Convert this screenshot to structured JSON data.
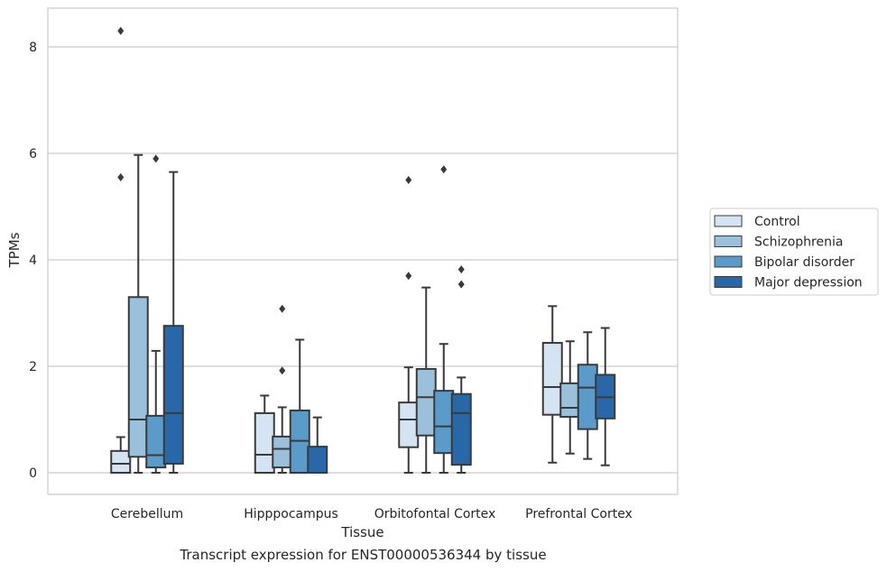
{
  "caption": "Transcript expression for ENST00000536344 by tissue",
  "chart_data": {
    "type": "box",
    "xlabel": "Tissue",
    "ylabel": "TPMs",
    "ylim": [
      -0.4,
      8.7
    ],
    "yticks": [
      0,
      2,
      4,
      6,
      8
    ],
    "grid": "horizontal",
    "legend_position": "center-right, outside plot",
    "categories": [
      "Cerebellum",
      "Hipppocampus",
      "Orbitofontal Cortex",
      "Prefrontal Cortex"
    ],
    "series": [
      {
        "name": "Control",
        "color": "#d4e4f2",
        "boxes": [
          {
            "whislo": 0.0,
            "q1": 0.0,
            "med": 0.17,
            "q3": 0.41,
            "whishi": 0.67,
            "fliers": [
              5.55,
              8.3
            ]
          },
          {
            "whislo": 0.0,
            "q1": 0.0,
            "med": 0.34,
            "q3": 1.12,
            "whishi": 1.45,
            "fliers": []
          },
          {
            "whislo": 0.0,
            "q1": 0.48,
            "med": 1.0,
            "q3": 1.32,
            "whishi": 1.98,
            "fliers": [
              3.7,
              5.5
            ]
          },
          {
            "whislo": 0.19,
            "q1": 1.09,
            "med": 1.61,
            "q3": 2.44,
            "whishi": 3.13,
            "fliers": []
          }
        ]
      },
      {
        "name": "Schizophrenia",
        "color": "#9ac0dc",
        "boxes": [
          {
            "whislo": 0.0,
            "q1": 0.3,
            "med": 1.0,
            "q3": 3.3,
            "whishi": 5.97,
            "fliers": []
          },
          {
            "whislo": 0.0,
            "q1": 0.1,
            "med": 0.45,
            "q3": 0.68,
            "whishi": 1.23,
            "fliers": [
              1.92,
              3.08
            ]
          },
          {
            "whislo": 0.0,
            "q1": 0.7,
            "med": 1.42,
            "q3": 1.95,
            "whishi": 3.48,
            "fliers": []
          },
          {
            "whislo": 0.36,
            "q1": 1.05,
            "med": 1.22,
            "q3": 1.68,
            "whishi": 2.47,
            "fliers": []
          }
        ]
      },
      {
        "name": "Bipolar disorder",
        "color": "#5b9bc9",
        "boxes": [
          {
            "whislo": 0.0,
            "q1": 0.1,
            "med": 0.33,
            "q3": 1.07,
            "whishi": 2.29,
            "fliers": [
              5.9
            ]
          },
          {
            "whislo": 0.0,
            "q1": 0.0,
            "med": 0.6,
            "q3": 1.17,
            "whishi": 2.5,
            "fliers": []
          },
          {
            "whislo": 0.0,
            "q1": 0.37,
            "med": 0.87,
            "q3": 1.54,
            "whishi": 2.42,
            "fliers": [
              5.7
            ]
          },
          {
            "whislo": 0.26,
            "q1": 0.82,
            "med": 1.6,
            "q3": 2.03,
            "whishi": 2.64,
            "fliers": []
          }
        ]
      },
      {
        "name": "Major depression",
        "color": "#2868a8",
        "boxes": [
          {
            "whislo": 0.0,
            "q1": 0.17,
            "med": 1.12,
            "q3": 2.76,
            "whishi": 5.65,
            "fliers": []
          },
          {
            "whislo": 0.0,
            "q1": 0.0,
            "med": 0.0,
            "q3": 0.49,
            "whishi": 1.04,
            "fliers": []
          },
          {
            "whislo": 0.0,
            "q1": 0.15,
            "med": 1.12,
            "q3": 1.48,
            "whishi": 1.79,
            "fliers": [
              3.54,
              3.82
            ]
          },
          {
            "whislo": 0.14,
            "q1": 1.02,
            "med": 1.42,
            "q3": 1.84,
            "whishi": 2.72,
            "fliers": []
          }
        ]
      }
    ]
  }
}
